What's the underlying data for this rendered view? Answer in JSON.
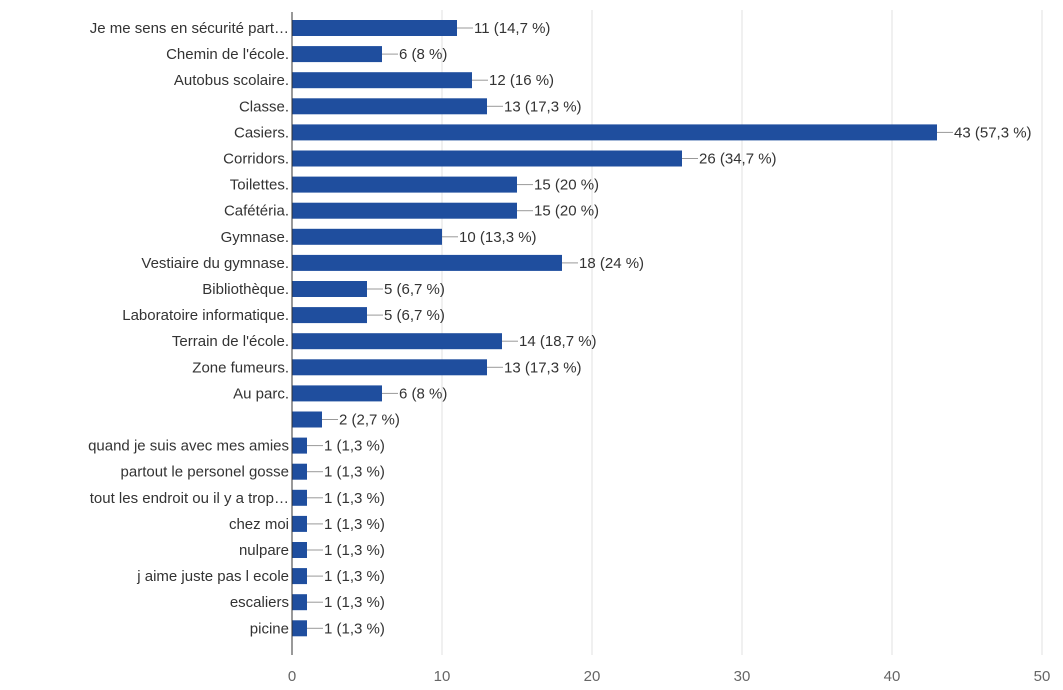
{
  "chart_data": {
    "type": "bar",
    "orientation": "horizontal",
    "categories": [
      "Je me sens en sécurité part…",
      "Chemin de l'école.",
      "Autobus scolaire.",
      "Classe.",
      "Casiers.",
      "Corridors.",
      "Toilettes.",
      "Cafétéria.",
      "Gymnase.",
      "Vestiaire du gymnase.",
      "Bibliothèque.",
      "Laboratoire informatique.",
      "Terrain de l'école.",
      "Zone fumeurs.",
      "Au parc.",
      "",
      "quand je suis avec mes amies",
      "partout le personel gosse",
      "tout les endroit ou il y a trop…",
      "chez moi",
      "nulpare",
      "j aime juste pas l ecole",
      "escaliers",
      "picine"
    ],
    "values": [
      11,
      6,
      12,
      13,
      43,
      26,
      15,
      15,
      10,
      18,
      5,
      5,
      14,
      13,
      6,
      2,
      1,
      1,
      1,
      1,
      1,
      1,
      1,
      1
    ],
    "value_labels": [
      "11 (14,7 %)",
      "6 (8 %)",
      "12 (16 %)",
      "13 (17,3 %)",
      "43 (57,3 %)",
      "26 (34,7 %)",
      "15 (20 %)",
      "15 (20 %)",
      "10 (13,3 %)",
      "18 (24 %)",
      "5 (6,7 %)",
      "5 (6,7 %)",
      "14 (18,7 %)",
      "13 (17,3 %)",
      "6 (8 %)",
      "2 (2,7 %)",
      "1 (1,3 %)",
      "1 (1,3 %)",
      "1 (1,3 %)",
      "1 (1,3 %)",
      "1 (1,3 %)",
      "1 (1,3 %)",
      "1 (1,3 %)",
      "1 (1,3 %)"
    ],
    "xlim": [
      0,
      50
    ],
    "xticks": [
      0,
      10,
      20,
      30,
      40,
      50
    ],
    "grid": true,
    "title": "",
    "xlabel": "",
    "ylabel": "",
    "colors": {
      "bar": "#1f4e9e",
      "grid": "#e0e0e0",
      "axis": "#333333",
      "connector": "#999999"
    }
  }
}
